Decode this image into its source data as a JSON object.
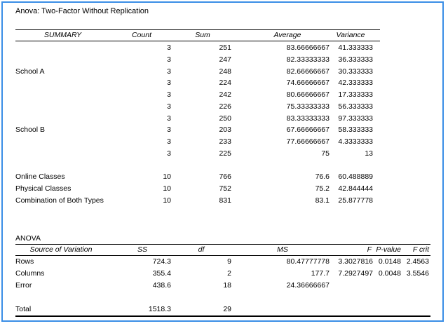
{
  "title": "Anova: Two-Factor Without Replication",
  "summary": {
    "headers": {
      "label": "SUMMARY",
      "count": "Count",
      "sum": "Sum",
      "average": "Average",
      "variance": "Variance"
    },
    "rows": [
      {
        "label": "",
        "count": "3",
        "sum": "251",
        "average": "83.66666667",
        "variance": "41.333333"
      },
      {
        "label": "",
        "count": "3",
        "sum": "247",
        "average": "82.33333333",
        "variance": "36.333333"
      },
      {
        "label": "School A",
        "count": "3",
        "sum": "248",
        "average": "82.66666667",
        "variance": "30.333333"
      },
      {
        "label": "",
        "count": "3",
        "sum": "224",
        "average": "74.66666667",
        "variance": "42.333333"
      },
      {
        "label": "",
        "count": "3",
        "sum": "242",
        "average": "80.66666667",
        "variance": "17.333333"
      },
      {
        "label": "",
        "count": "3",
        "sum": "226",
        "average": "75.33333333",
        "variance": "56.333333"
      },
      {
        "label": "",
        "count": "3",
        "sum": "250",
        "average": "83.33333333",
        "variance": "97.333333"
      },
      {
        "label": "School B",
        "count": "3",
        "sum": "203",
        "average": "67.66666667",
        "variance": "58.333333"
      },
      {
        "label": "",
        "count": "3",
        "sum": "233",
        "average": "77.66666667",
        "variance": "4.3333333"
      },
      {
        "label": "",
        "count": "3",
        "sum": "225",
        "average": "75",
        "variance": "13"
      },
      {
        "label": "",
        "count": "",
        "sum": "",
        "average": "",
        "variance": ""
      },
      {
        "label": "Online Classes",
        "count": "10",
        "sum": "766",
        "average": "76.6",
        "variance": "60.488889"
      },
      {
        "label": "Physical Classes",
        "count": "10",
        "sum": "752",
        "average": "75.2",
        "variance": "42.844444"
      },
      {
        "label": "Combination of Both Types",
        "count": "10",
        "sum": "831",
        "average": "83.1",
        "variance": "25.877778"
      }
    ]
  },
  "anova": {
    "title": "ANOVA",
    "headers": {
      "source": "Source of Variation",
      "ss": "SS",
      "df": "df",
      "ms": "MS",
      "f": "F",
      "pvalue": "P-value",
      "fcrit": "F crit"
    },
    "rows": [
      {
        "source": "Rows",
        "ss": "724.3",
        "df": "9",
        "ms": "80.47777778",
        "f": "3.3027816",
        "pvalue": "0.0148",
        "fcrit": "2.4563"
      },
      {
        "source": "Columns",
        "ss": "355.4",
        "df": "2",
        "ms": "177.7",
        "f": "7.2927497",
        "pvalue": "0.0048",
        "fcrit": "3.5546"
      },
      {
        "source": "Error",
        "ss": "438.6",
        "df": "18",
        "ms": "24.36666667",
        "f": "",
        "pvalue": "",
        "fcrit": ""
      },
      {
        "source": "",
        "ss": "",
        "df": "",
        "ms": "",
        "f": "",
        "pvalue": "",
        "fcrit": ""
      },
      {
        "source": "Total",
        "ss": "1518.3",
        "df": "29",
        "ms": "",
        "f": "",
        "pvalue": "",
        "fcrit": ""
      }
    ]
  },
  "colors": {
    "frame_border": "#3a8ee6",
    "text": "#000000",
    "background": "#ffffff"
  }
}
